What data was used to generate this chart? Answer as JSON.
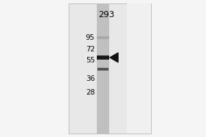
{
  "fig_width": 3.0,
  "fig_height": 2.0,
  "dpi": 100,
  "bg_color": "#f0f0f0",
  "gel_bg_color": "#e8e8e8",
  "lane_label": "293",
  "lane_label_fontsize": 9,
  "mw_markers": [
    95,
    72,
    55,
    36,
    28
  ],
  "mw_fontsize": 7.5,
  "band1_color": "#1a1a1a",
  "band2_color": "#555555",
  "arrow_color": "#111111",
  "lane_color": "#b8b8b8",
  "lane_stripe_color": "#505050",
  "white_bg": "#f5f5f5"
}
